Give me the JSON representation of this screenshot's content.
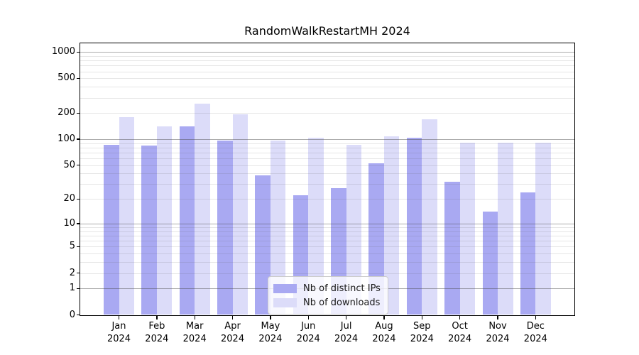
{
  "figure": {
    "title": "RandomWalkRestartMH 2024"
  },
  "chart_data": {
    "type": "bar",
    "title": "RandomWalkRestartMH 2024",
    "categories": [
      "Jan",
      "Feb",
      "Mar",
      "Apr",
      "May",
      "Jun",
      "Jul",
      "Aug",
      "Sep",
      "Oct",
      "Nov",
      "Dec"
    ],
    "x_tick_year": "2024",
    "series": [
      {
        "name": "Nb of distinct IPs",
        "color": "#a9a9f2",
        "values": [
          87,
          85,
          141,
          97,
          38,
          22,
          27,
          53,
          104,
          32,
          14,
          24
        ]
      },
      {
        "name": "Nb of downloads",
        "color": "#dcdcf9",
        "values": [
          180,
          140,
          258,
          192,
          96,
          105,
          86,
          108,
          169,
          92,
          91,
          92
        ]
      }
    ],
    "yscale": "log10(value+1)",
    "yticks": [
      0,
      1,
      2,
      5,
      10,
      20,
      50,
      100,
      200,
      500,
      1000
    ],
    "ylim": [
      0,
      1259
    ],
    "grid": true,
    "grid_major_at": [
      1,
      10,
      100,
      1000
    ],
    "legend_position": "lower center"
  }
}
